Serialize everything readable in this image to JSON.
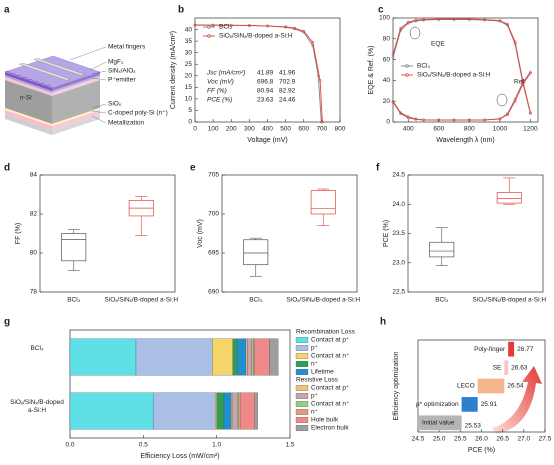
{
  "panel_labels": [
    "a",
    "b",
    "c",
    "d",
    "e",
    "f",
    "g",
    "h"
  ],
  "diagram": {
    "labels": [
      "Metal fingers",
      "MgF₂",
      "SiNₓ/AlOₓ",
      "P⁺emitter",
      "n-Si",
      "SiOₓ",
      "C-doped poly-Si (n⁺)",
      "Metallization"
    ]
  },
  "chart_data": [
    {
      "type": "line",
      "xlabel": "Voltage (mV)",
      "ylabel": "Current density (mA/cm²)",
      "xlim": [
        0,
        800
      ],
      "xticks": [
        0,
        100,
        200,
        300,
        400,
        500,
        600,
        700,
        800
      ],
      "ylim": [
        0,
        45
      ],
      "yticks": [
        0,
        5,
        10,
        15,
        20,
        25,
        30,
        35,
        40
      ],
      "legend": "upper left",
      "series": [
        {
          "name": "BCl₃",
          "color": "#808080",
          "x": [
            0,
            100,
            200,
            300,
            400,
            500,
            550,
            600,
            650,
            680,
            696.8
          ],
          "values": [
            41.89,
            41.85,
            41.8,
            41.7,
            41.5,
            41.0,
            40.3,
            38.8,
            33,
            20,
            0
          ]
        },
        {
          "name": "SiOₓ/SiNₓ/B-doped a-Si:H",
          "color": "#e8413c",
          "x": [
            0,
            100,
            200,
            300,
            400,
            500,
            550,
            600,
            650,
            690,
            702.9
          ],
          "values": [
            41.96,
            41.93,
            41.88,
            41.8,
            41.6,
            41.2,
            40.6,
            39.3,
            34.5,
            18,
            0
          ]
        }
      ],
      "stats": [
        {
          "label": "Jsc (mA/cm²)",
          "values": [
            41.89,
            41.96
          ]
        },
        {
          "label": "Voc (mV)",
          "values": [
            696.8,
            702.9
          ]
        },
        {
          "label": "FF (%)",
          "values": [
            80.94,
            82.92
          ]
        },
        {
          "label": "PCE (%)",
          "values": [
            23.63,
            24.46
          ]
        }
      ]
    },
    {
      "type": "line",
      "xlabel": "Wavelength λ (nm)",
      "ylabel": "EQE & Ref. (%)",
      "xlim": [
        300,
        1250
      ],
      "xticks": [
        400,
        600,
        800,
        1000,
        1200
      ],
      "ylim": [
        0,
        100
      ],
      "yticks": [
        0,
        20,
        40,
        60,
        80,
        100
      ],
      "legend": "center left",
      "x": [
        300,
        350,
        400,
        450,
        500,
        600,
        700,
        800,
        900,
        1000,
        1050,
        1100,
        1150,
        1200
      ],
      "series": [
        {
          "name": "BCl₃",
          "color": "#808080",
          "values": [
            62,
            88,
            95,
            97,
            98,
            98.5,
            98.5,
            98.5,
            98,
            97,
            93,
            75,
            38,
            8
          ],
          "ref": [
            20,
            9,
            5,
            3,
            2,
            2,
            2,
            2,
            2,
            3,
            8,
            22,
            38,
            48
          ]
        },
        {
          "name": "SiOₓ/SiNₓ/B-doped a-Si:H",
          "color": "#e8413c",
          "values": [
            65,
            90,
            96,
            98,
            98.5,
            99,
            99,
            99,
            98.5,
            97.5,
            94,
            77,
            40,
            9
          ],
          "ref": [
            19,
            8,
            4,
            2.5,
            2,
            1.8,
            1.8,
            1.8,
            2,
            3,
            7,
            20,
            36,
            47
          ]
        }
      ],
      "annotations": [
        {
          "text": "EQE"
        },
        {
          "text": "Ref."
        }
      ]
    },
    {
      "type": "box",
      "ylabel": "FF (%)",
      "categories": [
        "BCl₃",
        "SiOₓ/SiNₓ/B-doped a-Si:H"
      ],
      "colors": [
        "#555555",
        "#e0453a"
      ],
      "ylim": [
        78,
        84
      ],
      "yticks": [
        78,
        80,
        82,
        84
      ],
      "boxes": [
        {
          "min": 79.1,
          "q1": 79.6,
          "median": 80.7,
          "q3": 81.0,
          "max": 81.2
        },
        {
          "min": 80.9,
          "q1": 81.9,
          "median": 82.3,
          "q3": 82.7,
          "max": 82.9
        }
      ]
    },
    {
      "type": "box",
      "ylabel": "Voc (mV)",
      "categories": [
        "BCl₃",
        "SiOₓ/SiNₓ/B-doped a-Si:H"
      ],
      "colors": [
        "#555555",
        "#e0453a"
      ],
      "ylim": [
        690,
        705
      ],
      "yticks": [
        690,
        695,
        700,
        705
      ],
      "boxes": [
        {
          "min": 692,
          "q1": 693.5,
          "median": 695,
          "q3": 696.7,
          "max": 696.9
        },
        {
          "min": 698.5,
          "q1": 700,
          "median": 700.7,
          "q3": 703,
          "max": 703.2
        }
      ]
    },
    {
      "type": "box",
      "ylabel": "PCE (%)",
      "categories": [
        "BCl₃",
        "SiOₓ/SiNₓ/B-doped a-Si:H"
      ],
      "colors": [
        "#555555",
        "#e0453a"
      ],
      "ylim": [
        22.5,
        24.5
      ],
      "yticks": [
        22.5,
        {
          "value": 23,
          "label": "23.0"
        },
        23.5,
        {
          "value": 24,
          "label": "24.0"
        },
        24.5
      ],
      "boxes": [
        {
          "min": 22.95,
          "q1": 23.1,
          "median": 23.2,
          "q3": 23.35,
          "max": 23.6
        },
        {
          "min": 24.0,
          "q1": 24.02,
          "median": 24.1,
          "q3": 24.2,
          "max": 24.45
        }
      ]
    },
    {
      "type": "stacked_bar_h",
      "xlabel": "Efficiency Loss (mW/cm²)",
      "categories": [
        "BCl₃",
        "SiOₓ/SiNₓ/B-doped a-Si:H"
      ],
      "xlim": [
        0,
        1.5
      ],
      "xticks": [
        {
          "value": 0,
          "label": "0.0"
        },
        0.5,
        {
          "value": 1,
          "label": "1.0"
        },
        1.5
      ],
      "groups": [
        {
          "name": "Recombination Loss",
          "series": [
            {
              "name": "Contact at p⁺",
              "color": "#5ee0e6",
              "values": [
                0.45,
                0.57
              ]
            },
            {
              "name": "p⁺",
              "color": "#a9bfe6",
              "values": [
                0.52,
                0.42
              ]
            },
            {
              "name": "Contact at n⁺",
              "color": "#f5d46a",
              "values": [
                0.14,
                0.01
              ]
            },
            {
              "name": "n⁺",
              "color": "#2e9d57",
              "values": [
                0.03,
                0.05
              ]
            },
            {
              "name": "Lifetime",
              "color": "#1f8fd0",
              "values": [
                0.06,
                0.05
              ]
            }
          ]
        },
        {
          "name": "Resistive Loss",
          "series": [
            {
              "name": "Contact at p⁺",
              "color": "#f2c27a",
              "values": [
                0.01,
                0.01
              ]
            },
            {
              "name": "p⁺",
              "color": "#c9a3b0",
              "values": [
                0.03,
                0.03
              ]
            },
            {
              "name": "Contact at n⁺",
              "color": "#8fd18a",
              "values": [
                0.01,
                0.01
              ]
            },
            {
              "name": "n⁺",
              "color": "#e59a7a",
              "values": [
                0.01,
                0.01
              ]
            },
            {
              "name": "Hole bulk",
              "color": "#f08a8a",
              "values": [
                0.1,
                0.1
              ]
            },
            {
              "name": "Electron bulk",
              "color": "#9e9e9e",
              "values": [
                0.06,
                0.02
              ]
            }
          ]
        }
      ]
    },
    {
      "type": "waterfall",
      "xlabel": "PCE (%)",
      "ylabel": "Efficiency optimization",
      "xlim": [
        24.5,
        27.5
      ],
      "xticks": [
        24.5,
        {
          "value": 25,
          "label": "25.0"
        },
        25.5,
        {
          "value": 26,
          "label": "26.0"
        },
        26.5,
        {
          "value": 27,
          "label": "27.0"
        },
        27.5
      ],
      "categories": [
        "Initial value",
        "ρ* optimization",
        "LECO",
        "SE",
        "Poly-finger"
      ],
      "values": [
        25.53,
        25.91,
        26.54,
        26.63,
        26.77
      ],
      "colors": [
        "#b5b5b5",
        "#2f7fd0",
        "#f4b48c",
        "#f7c4c4",
        "#e53935"
      ]
    }
  ]
}
